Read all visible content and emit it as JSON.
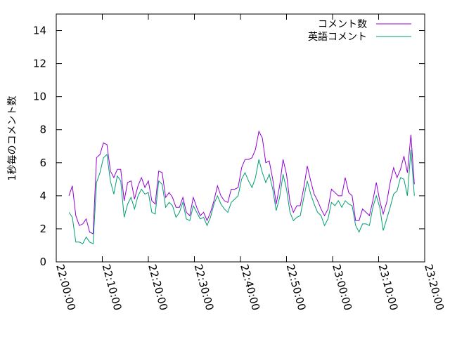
{
  "chart_data": {
    "type": "line",
    "ylabel": "1秒毎のコメント数",
    "xlabel": "",
    "ylim": [
      0,
      15
    ],
    "yticks": [
      0,
      2,
      4,
      6,
      8,
      10,
      12,
      14
    ],
    "xlim": [
      "22:00:00",
      "23:20:00"
    ],
    "xticks": [
      "22:00:00",
      "22:10:00",
      "22:20:00",
      "22:30:00",
      "22:40:00",
      "22:50:00",
      "23:00:00",
      "23:10:00",
      "23:20:00"
    ],
    "grid": false,
    "legend_position": "top-right",
    "x": [
      "22:02:45",
      "22:03:30",
      "22:04:15",
      "22:05:00",
      "22:05:45",
      "22:06:30",
      "22:07:15",
      "22:08:00",
      "22:08:45",
      "22:09:30",
      "22:10:15",
      "22:11:00",
      "22:11:45",
      "22:12:30",
      "22:13:15",
      "22:14:00",
      "22:14:45",
      "22:15:30",
      "22:16:15",
      "22:17:00",
      "22:17:45",
      "22:18:30",
      "22:19:15",
      "22:20:00",
      "22:20:45",
      "22:21:30",
      "22:22:15",
      "22:23:00",
      "22:23:45",
      "22:24:30",
      "22:25:15",
      "22:26:00",
      "22:26:45",
      "22:27:30",
      "22:28:15",
      "22:29:00",
      "22:29:45",
      "22:30:30",
      "22:31:15",
      "22:32:00",
      "22:32:45",
      "22:33:30",
      "22:34:15",
      "22:35:00",
      "22:35:45",
      "22:36:30",
      "22:37:15",
      "22:38:00",
      "22:38:45",
      "22:39:30",
      "22:40:15",
      "22:41:00",
      "22:41:45",
      "22:42:30",
      "22:43:15",
      "22:44:00",
      "22:44:45",
      "22:45:30",
      "22:46:15",
      "22:47:00",
      "22:47:45",
      "22:48:30",
      "22:49:15",
      "22:50:00",
      "22:50:45",
      "22:51:30",
      "22:52:15",
      "22:53:00",
      "22:53:45",
      "22:54:30",
      "22:55:15",
      "22:56:00",
      "22:56:45",
      "22:57:30",
      "22:58:15",
      "22:59:00",
      "22:59:45",
      "23:00:30",
      "23:01:15",
      "23:02:00",
      "23:02:45",
      "23:03:30",
      "23:04:15",
      "23:05:00",
      "23:05:45",
      "23:06:30",
      "23:07:15",
      "23:08:00",
      "23:08:45",
      "23:09:30",
      "23:10:15",
      "23:11:00",
      "23:11:45",
      "23:12:30",
      "23:13:15",
      "23:14:00",
      "23:14:45",
      "23:15:30",
      "23:16:15",
      "23:17:00",
      "23:17:45"
    ],
    "series": [
      {
        "name": "コメント数",
        "color": "#9400d3",
        "values": [
          4.0,
          4.6,
          2.8,
          2.2,
          2.3,
          2.6,
          1.8,
          1.7,
          6.3,
          6.5,
          7.2,
          7.1,
          5.5,
          5.1,
          5.6,
          5.6,
          3.7,
          4.8,
          4.9,
          3.8,
          4.6,
          5.1,
          4.5,
          4.9,
          3.7,
          3.5,
          5.5,
          5.4,
          3.9,
          4.2,
          3.9,
          3.3,
          3.3,
          3.9,
          3.0,
          2.8,
          3.9,
          3.3,
          2.8,
          3.0,
          2.5,
          3.0,
          3.7,
          4.6,
          4.0,
          3.7,
          3.6,
          4.4,
          4.4,
          4.5,
          5.7,
          6.2,
          6.2,
          6.3,
          6.8,
          7.9,
          7.5,
          6.0,
          6.1,
          5.0,
          3.5,
          4.6,
          6.2,
          5.3,
          3.6,
          3.0,
          3.4,
          3.4,
          4.5,
          5.8,
          4.9,
          4.1,
          3.7,
          3.2,
          2.8,
          3.2,
          4.4,
          4.2,
          4.0,
          4.0,
          5.1,
          4.2,
          4.0,
          2.5,
          2.5,
          3.2,
          3.0,
          2.8,
          3.7,
          4.8,
          3.7,
          2.9,
          3.6,
          4.8,
          5.7,
          5.1,
          5.6,
          6.4,
          5.4,
          7.7,
          4.7
        ]
      },
      {
        "name": "英語コメント",
        "color": "#009e73",
        "values": [
          3.0,
          2.7,
          1.2,
          1.2,
          1.1,
          1.5,
          1.2,
          1.1,
          4.8,
          5.4,
          6.3,
          6.5,
          4.9,
          4.1,
          5.2,
          4.9,
          2.7,
          3.5,
          3.9,
          3.2,
          4.0,
          4.4,
          4.1,
          4.2,
          3.0,
          2.9,
          4.9,
          4.7,
          3.3,
          3.6,
          3.4,
          2.7,
          3.0,
          3.6,
          2.6,
          2.5,
          3.4,
          3.0,
          2.6,
          2.7,
          2.2,
          2.7,
          3.5,
          4.0,
          3.5,
          3.2,
          3.0,
          3.6,
          3.8,
          4.0,
          5.0,
          5.4,
          4.9,
          4.5,
          5.1,
          6.2,
          5.4,
          4.8,
          5.3,
          4.4,
          3.1,
          3.9,
          5.3,
          4.4,
          3.0,
          2.5,
          2.7,
          2.8,
          3.9,
          4.9,
          4.1,
          3.5,
          3.0,
          2.8,
          2.2,
          2.6,
          3.6,
          3.4,
          3.7,
          3.3,
          3.7,
          3.5,
          3.4,
          2.2,
          1.8,
          2.3,
          2.3,
          2.2,
          3.3,
          4.0,
          3.3,
          1.9,
          2.6,
          3.3,
          4.1,
          4.3,
          5.1,
          5.0,
          4.0,
          6.8,
          4.0
        ]
      }
    ]
  }
}
